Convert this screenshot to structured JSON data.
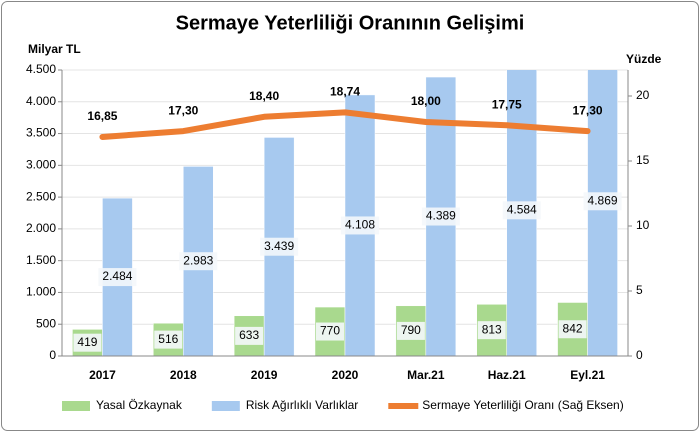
{
  "chart_data": {
    "type": "bar",
    "title": "Sermaye Yeterliliği Oranının Gelişimi",
    "y_label": "Milyar TL",
    "y2_label": "Yüzde",
    "categories": [
      "2017",
      "2018",
      "2019",
      "2020",
      "Mar.21",
      "Haz.21",
      "Eyl.21"
    ],
    "series": [
      {
        "name": "Yasal Özkaynak",
        "type": "bar",
        "color": "#a9d98e",
        "values": [
          419,
          516,
          633,
          770,
          790,
          813,
          842
        ]
      },
      {
        "name": "Risk Ağırlıklı Varlıklar",
        "type": "bar",
        "color": "#a7c9ef",
        "values": [
          2484,
          2983,
          3439,
          4108,
          4389,
          4584,
          4869
        ],
        "value_labels": [
          "2.484",
          "2.983",
          "3.439",
          "4.108",
          "4.389",
          "4.584",
          "4.869"
        ]
      },
      {
        "name": "Sermaye Yeterliliği Oranı (Sağ Eksen)",
        "type": "line",
        "axis": "y2",
        "color": "#ed7d31",
        "values": [
          16.85,
          17.3,
          18.4,
          18.74,
          18.0,
          17.75,
          17.3
        ],
        "value_labels": [
          "16,85",
          "17,30",
          "18,40",
          "18,74",
          "18,00",
          "17,75",
          "17,30"
        ]
      }
    ],
    "ylim": [
      0,
      4500
    ],
    "yticks": [
      0,
      500,
      {
        "value": 1000,
        "label": "1.000"
      },
      {
        "value": 1500,
        "label": "1.500"
      },
      {
        "value": 2000,
        "label": "2.000"
      },
      {
        "value": 2500,
        "label": "2.500"
      },
      {
        "value": 3000,
        "label": "3.000"
      },
      {
        "value": 3500,
        "label": "3.500"
      },
      {
        "value": 4000,
        "label": "4.000"
      },
      {
        "value": 4500,
        "label": "4.500"
      }
    ],
    "y2lim": [
      0,
      22
    ],
    "y2ticks": [
      0,
      5,
      10,
      15,
      20
    ],
    "grid": true
  }
}
